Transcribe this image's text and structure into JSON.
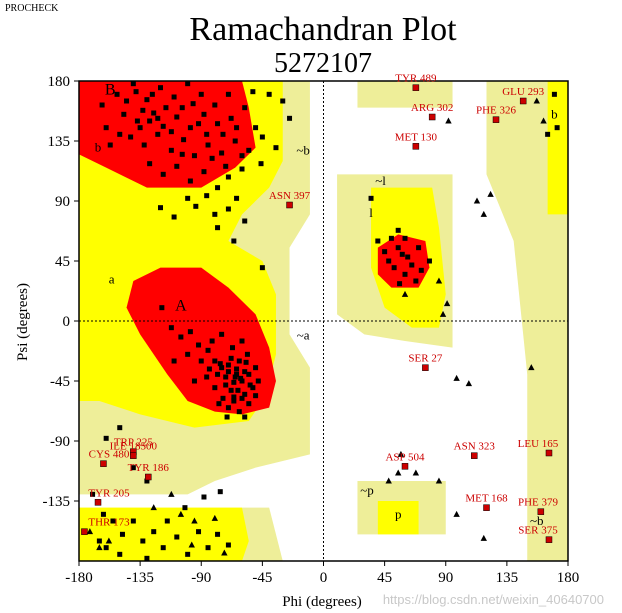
{
  "program_label": "PROCHECK",
  "watermark": "https://blog.csdn.net/weixin_40640700",
  "chart_data": {
    "type": "scatter",
    "title": "Ramachandran Plot",
    "subtitle": "5272107",
    "xlabel": "Phi (degrees)",
    "ylabel": "Psi (degrees)",
    "xlim": [
      -180,
      180
    ],
    "ylim": [
      -180,
      180
    ],
    "xticks": [
      -180,
      -135,
      -90,
      -45,
      0,
      45,
      90,
      135,
      180
    ],
    "yticks": [
      -135,
      -90,
      -45,
      0,
      45,
      90,
      135,
      180
    ],
    "grid": false,
    "colors": {
      "core": "#ff0000",
      "allowed": "#ffff00",
      "generous": "#eeee99",
      "disallowed_tint": "#ffffcc",
      "label": "#cc0000"
    },
    "region_labels": [
      {
        "text": "B",
        "phi": -157,
        "psi": 170
      },
      {
        "text": "b",
        "phi": -166,
        "psi": 127
      },
      {
        "text": "a",
        "phi": -156,
        "psi": 28
      },
      {
        "text": "A",
        "phi": -105,
        "psi": 8
      },
      {
        "text": "~b",
        "phi": -15,
        "psi": 125
      },
      {
        "text": "~a",
        "phi": -15,
        "psi": -14
      },
      {
        "text": "~l",
        "phi": 42,
        "psi": 102
      },
      {
        "text": "l",
        "phi": 35,
        "psi": 78
      },
      {
        "text": "b",
        "phi": 170,
        "psi": 152
      },
      {
        "text": "~b",
        "phi": 157,
        "psi": -153
      },
      {
        "text": "~p",
        "phi": 32,
        "psi": -130
      },
      {
        "text": "p",
        "phi": 55,
        "psi": -148
      }
    ],
    "labelled_residues": [
      {
        "name": "TYR 489",
        "phi": 68,
        "psi": 175
      },
      {
        "name": "GLU 293",
        "phi": 147,
        "psi": 165
      },
      {
        "name": "ARG 302",
        "phi": 80,
        "psi": 153
      },
      {
        "name": "PHE 326",
        "phi": 127,
        "psi": 151
      },
      {
        "name": "MET 130",
        "phi": 68,
        "psi": 131
      },
      {
        "name": "ASN 397",
        "phi": -25,
        "psi": 87
      },
      {
        "name": "SER 27",
        "phi": 75,
        "psi": -35
      },
      {
        "name": "LEU 165",
        "phi": 166,
        "psi": -99
      },
      {
        "name": "TRP 225",
        "phi": -140,
        "psi": -98
      },
      {
        "name": "ILE 18500",
        "phi": -140,
        "psi": -101
      },
      {
        "name": "ASN 323",
        "phi": 111,
        "psi": -101
      },
      {
        "name": "CYS 480",
        "phi": -162,
        "psi": -107
      },
      {
        "name": "ASP 504",
        "phi": 60,
        "psi": -109
      },
      {
        "name": "TYR 186",
        "phi": -129,
        "psi": -117
      },
      {
        "name": "TYR 205",
        "phi": -166,
        "psi": -136
      },
      {
        "name": "MET 168",
        "phi": 120,
        "psi": -140
      },
      {
        "name": "PHE 379",
        "phi": 160,
        "psi": -143
      },
      {
        "name": "THR 173",
        "phi": -176,
        "psi": -158
      },
      {
        "name": "SER 375",
        "phi": 166,
        "psi": -164
      }
    ],
    "glycine_points": [
      [
        92,
        150
      ],
      [
        157,
        165
      ],
      [
        162,
        150
      ],
      [
        113,
        90
      ],
      [
        123,
        95
      ],
      [
        118,
        80
      ],
      [
        85,
        30
      ],
      [
        91,
        13
      ],
      [
        88,
        5
      ],
      [
        60,
        20
      ],
      [
        98,
        -43
      ],
      [
        107,
        -47
      ],
      [
        153,
        -35
      ],
      [
        57,
        -100
      ],
      [
        68,
        -114
      ],
      [
        55,
        -114
      ],
      [
        48,
        -120
      ],
      [
        85,
        -120
      ],
      [
        98,
        -145
      ],
      [
        118,
        -163
      ],
      [
        -172,
        -158
      ],
      [
        -165,
        -170
      ],
      [
        -158,
        -165
      ],
      [
        -125,
        -140
      ],
      [
        -105,
        -145
      ],
      [
        -112,
        -130
      ],
      [
        -95,
        -150
      ],
      [
        -80,
        -148
      ],
      [
        -97,
        -168
      ],
      [
        -73,
        -174
      ]
    ],
    "residue_points": [
      [
        -163,
        162
      ],
      [
        -152,
        170
      ],
      [
        -140,
        178
      ],
      [
        -130,
        166
      ],
      [
        -120,
        175
      ],
      [
        -110,
        168
      ],
      [
        -100,
        178
      ],
      [
        -90,
        170
      ],
      [
        -80,
        162
      ],
      [
        -70,
        170
      ],
      [
        -147,
        155
      ],
      [
        -137,
        150
      ],
      [
        -125,
        156
      ],
      [
        -118,
        146
      ],
      [
        -108,
        153
      ],
      [
        -98,
        145
      ],
      [
        -88,
        155
      ],
      [
        -78,
        148
      ],
      [
        -68,
        152
      ],
      [
        -58,
        160
      ],
      [
        -52,
        172
      ],
      [
        -40,
        170
      ],
      [
        -142,
        138
      ],
      [
        -132,
        132
      ],
      [
        -122,
        140
      ],
      [
        -112,
        128
      ],
      [
        -103,
        136
      ],
      [
        -95,
        124
      ],
      [
        -85,
        132
      ],
      [
        -75,
        126
      ],
      [
        -65,
        135
      ],
      [
        -55,
        128
      ],
      [
        -45,
        138
      ],
      [
        -35,
        130
      ],
      [
        -128,
        118
      ],
      [
        -118,
        110
      ],
      [
        -108,
        116
      ],
      [
        -98,
        105
      ],
      [
        -88,
        112
      ],
      [
        -78,
        100
      ],
      [
        -70,
        108
      ],
      [
        -60,
        114
      ],
      [
        -135,
        145
      ],
      [
        -128,
        150
      ],
      [
        -122,
        152
      ],
      [
        -116,
        160
      ],
      [
        -112,
        142
      ],
      [
        -104,
        160
      ],
      [
        -96,
        163
      ],
      [
        -92,
        148
      ],
      [
        -86,
        140
      ],
      [
        -82,
        122
      ],
      [
        -74,
        140
      ],
      [
        -72,
        116
      ],
      [
        -64,
        145
      ],
      [
        -60,
        124
      ],
      [
        -50,
        145
      ],
      [
        -46,
        118
      ],
      [
        -30,
        165
      ],
      [
        -25,
        152
      ],
      [
        -160,
        145
      ],
      [
        -157,
        132
      ],
      [
        -150,
        140
      ],
      [
        -145,
        165
      ],
      [
        -138,
        172
      ],
      [
        -133,
        158
      ],
      [
        -126,
        170
      ],
      [
        -104,
        125
      ],
      [
        -100,
        92
      ],
      [
        -94,
        86
      ],
      [
        -86,
        94
      ],
      [
        -80,
        80
      ],
      [
        -70,
        84
      ],
      [
        -64,
        92
      ],
      [
        -120,
        85
      ],
      [
        -110,
        78
      ],
      [
        -78,
        70
      ],
      [
        -66,
        60
      ],
      [
        -119,
        10
      ],
      [
        -112,
        -5
      ],
      [
        -105,
        -12
      ],
      [
        -98,
        -8
      ],
      [
        -92,
        -18
      ],
      [
        -85,
        -22
      ],
      [
        -80,
        -30
      ],
      [
        -75,
        -35
      ],
      [
        -70,
        -38
      ],
      [
        -65,
        -42
      ],
      [
        -60,
        -45
      ],
      [
        -55,
        -40
      ],
      [
        -50,
        -35
      ],
      [
        -68,
        -28
      ],
      [
        -72,
        -48
      ],
      [
        -63,
        -52
      ],
      [
        -58,
        -55
      ],
      [
        -66,
        -60
      ],
      [
        -74,
        -58
      ],
      [
        -80,
        -50
      ],
      [
        -86,
        -42
      ],
      [
        -62,
        -30
      ],
      [
        -56,
        -25
      ],
      [
        -52,
        -50
      ],
      [
        -48,
        -45
      ],
      [
        -70,
        -65
      ],
      [
        -62,
        -68
      ],
      [
        -55,
        -62
      ],
      [
        -78,
        -40
      ],
      [
        -90,
        -30
      ],
      [
        -100,
        -25
      ],
      [
        -67,
        -20
      ],
      [
        -60,
        -15
      ],
      [
        -75,
        -10
      ],
      [
        -82,
        -15
      ],
      [
        -64,
        -36
      ],
      [
        -58,
        -38
      ],
      [
        -66,
        -46
      ],
      [
        -60,
        -58
      ],
      [
        -68,
        -52
      ],
      [
        -72,
        -42
      ],
      [
        -76,
        -32
      ],
      [
        -54,
        -48
      ],
      [
        -64,
        -40
      ],
      [
        -70,
        -33
      ],
      [
        -61,
        -43
      ],
      [
        -57,
        -31
      ],
      [
        -66,
        -57
      ],
      [
        -50,
        -56
      ],
      [
        -77,
        -62
      ],
      [
        -84,
        -36
      ],
      [
        -71,
        -72
      ],
      [
        -58,
        -72
      ],
      [
        -95,
        -45
      ],
      [
        -110,
        -30
      ],
      [
        -160,
        -88
      ],
      [
        -150,
        -80
      ],
      [
        -58,
        75
      ],
      [
        -45,
        40
      ],
      [
        50,
        62
      ],
      [
        55,
        55
      ],
      [
        58,
        50
      ],
      [
        62,
        48
      ],
      [
        52,
        40
      ],
      [
        48,
        45
      ],
      [
        60,
        35
      ],
      [
        65,
        42
      ],
      [
        68,
        30
      ],
      [
        56,
        28
      ],
      [
        72,
        38
      ],
      [
        78,
        45
      ],
      [
        70,
        55
      ],
      [
        45,
        52
      ],
      [
        40,
        60
      ],
      [
        60,
        62
      ],
      [
        55,
        68
      ],
      [
        35,
        92
      ],
      [
        170,
        170
      ],
      [
        172,
        145
      ],
      [
        165,
        140
      ],
      [
        -170,
        -130
      ],
      [
        -162,
        -145
      ],
      [
        -155,
        -150
      ],
      [
        -148,
        -160
      ],
      [
        -140,
        -150
      ],
      [
        -133,
        -165
      ],
      [
        -125,
        -158
      ],
      [
        -118,
        -170
      ],
      [
        -108,
        -162
      ],
      [
        -100,
        -175
      ],
      [
        -92,
        -158
      ],
      [
        -85,
        -170
      ],
      [
        -78,
        -160
      ],
      [
        -70,
        -168
      ],
      [
        -150,
        -175
      ],
      [
        -165,
        -165
      ],
      [
        -160,
        -170
      ],
      [
        -130,
        -178
      ],
      [
        -115,
        -150
      ],
      [
        -102,
        -140
      ],
      [
        -88,
        -132
      ],
      [
        -76,
        -128
      ],
      [
        -130,
        -120
      ],
      [
        -140,
        -110
      ]
    ]
  }
}
